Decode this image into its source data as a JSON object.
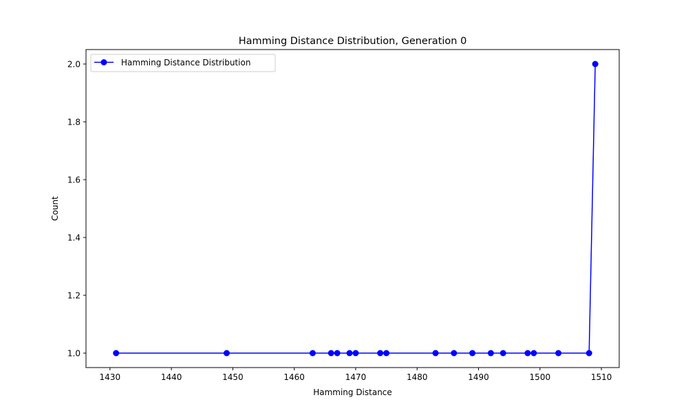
{
  "chart_data": {
    "type": "line",
    "title": "Hamming Distance Distribution, Generation 0",
    "xlabel": "Hamming Distance",
    "ylabel": "Count",
    "xlim": [
      1426.1,
      1512.9
    ],
    "ylim": [
      0.95,
      2.05
    ],
    "xticks": [
      1430,
      1440,
      1450,
      1460,
      1470,
      1480,
      1490,
      1500,
      1510
    ],
    "yticks": [
      1.0,
      1.2,
      1.4,
      1.6,
      1.8,
      2.0
    ],
    "grid": false,
    "legend_position": "upper-left",
    "series": [
      {
        "name": "Hamming Distance Distribution",
        "color": "#0000ff",
        "marker": "circle",
        "x": [
          1431,
          1449,
          1463,
          1466,
          1467,
          1469,
          1470,
          1474,
          1475,
          1483,
          1486,
          1489,
          1492,
          1494,
          1498,
          1499,
          1503,
          1508,
          1509
        ],
        "y": [
          1,
          1,
          1,
          1,
          1,
          1,
          1,
          1,
          1,
          1,
          1,
          1,
          1,
          1,
          1,
          1,
          1,
          1,
          2
        ]
      }
    ]
  }
}
